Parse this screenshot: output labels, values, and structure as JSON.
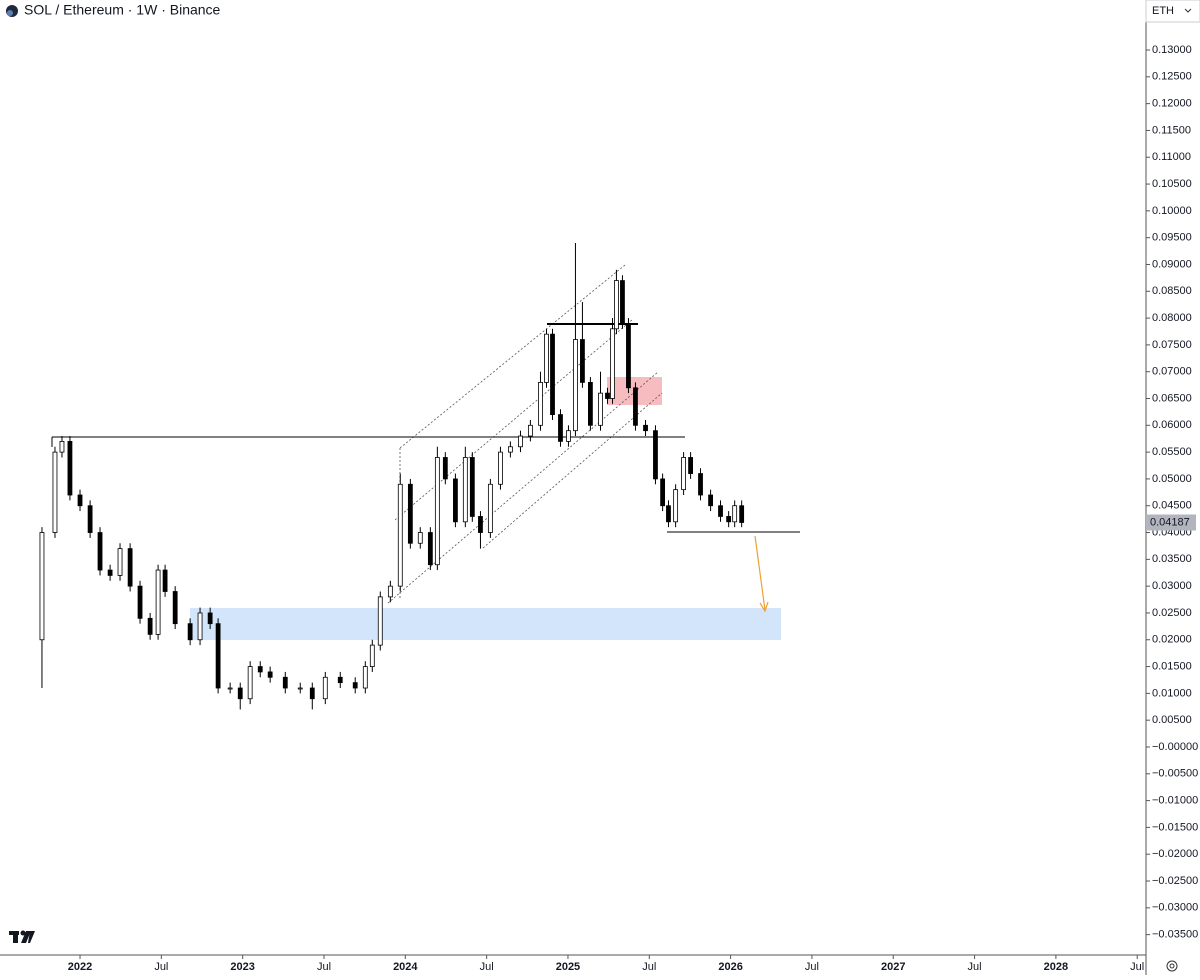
{
  "header": {
    "symbol": "SOL / Ethereum · 1W · Binance",
    "currency": "ETH"
  },
  "chart_data": {
    "type": "candlestick",
    "x": [
      2021.766,
      2021.846,
      2021.889,
      2021.938,
      2022.0,
      2022.062,
      2022.123,
      2022.185,
      2022.246,
      2022.308,
      2022.369,
      2022.431,
      2022.48,
      2022.523,
      2022.585,
      2022.677,
      2022.738,
      2022.8,
      2022.849,
      2022.923,
      2022.985,
      2023.046,
      2023.108,
      2023.169,
      2023.262,
      2023.354,
      2023.428,
      2023.508,
      2023.6,
      2023.692,
      2023.754,
      2023.797,
      2023.846,
      2023.908,
      2023.969,
      2024.031,
      2024.092,
      2024.154,
      2024.197,
      2024.246,
      2024.308,
      2024.369,
      2024.412,
      2024.462,
      2024.523,
      2024.585,
      2024.646,
      2024.708,
      2024.769,
      2024.831,
      2024.868,
      2024.905,
      2024.954,
      2025.003,
      2025.046,
      2025.089,
      2025.138,
      2025.2,
      2025.243,
      2025.274,
      2025.298,
      2025.335,
      2025.372,
      2025.415,
      2025.477,
      2025.538,
      2025.582,
      2025.618,
      2025.662,
      2025.711,
      2025.754,
      2025.815,
      2025.877,
      2025.938,
      2025.988,
      2026.025,
      2026.068
    ],
    "open": [
      0.02,
      0.04,
      0.055,
      0.057,
      0.047,
      0.045,
      0.04,
      0.033,
      0.032,
      0.037,
      0.03,
      0.024,
      0.021,
      0.033,
      0.029,
      0.023,
      0.02,
      0.025,
      0.023,
      0.011,
      0.011,
      0.009,
      0.015,
      0.014,
      0.013,
      0.011,
      0.011,
      0.009,
      0.013,
      0.012,
      0.011,
      0.015,
      0.019,
      0.028,
      0.03,
      0.049,
      0.038,
      0.04,
      0.034,
      0.054,
      0.05,
      0.042,
      0.054,
      0.043,
      0.04,
      0.049,
      0.055,
      0.056,
      0.058,
      0.06,
      0.068,
      0.077,
      0.062,
      0.057,
      0.059,
      0.076,
      0.068,
      0.06,
      0.066,
      0.065,
      0.078,
      0.087,
      0.079,
      0.067,
      0.06,
      0.059,
      0.05,
      0.045,
      0.042,
      0.048,
      0.054,
      0.051,
      0.047,
      0.045,
      0.043,
      0.042,
      0.045
    ],
    "high": [
      0.041,
      0.056,
      0.058,
      0.058,
      0.048,
      0.046,
      0.041,
      0.034,
      0.038,
      0.038,
      0.031,
      0.025,
      0.034,
      0.034,
      0.03,
      0.024,
      0.026,
      0.026,
      0.024,
      0.012,
      0.012,
      0.016,
      0.016,
      0.015,
      0.014,
      0.012,
      0.012,
      0.014,
      0.014,
      0.013,
      0.016,
      0.02,
      0.029,
      0.031,
      0.051,
      0.05,
      0.041,
      0.041,
      0.056,
      0.055,
      0.051,
      0.056,
      0.055,
      0.044,
      0.05,
      0.056,
      0.057,
      0.059,
      0.061,
      0.07,
      0.078,
      0.078,
      0.063,
      0.06,
      0.094,
      0.083,
      0.069,
      0.07,
      0.067,
      0.08,
      0.089,
      0.088,
      0.08,
      0.068,
      0.061,
      0.06,
      0.051,
      0.046,
      0.049,
      0.055,
      0.055,
      0.052,
      0.048,
      0.046,
      0.044,
      0.046,
      0.046
    ],
    "low": [
      0.011,
      0.039,
      0.054,
      0.046,
      0.044,
      0.039,
      0.032,
      0.031,
      0.031,
      0.029,
      0.023,
      0.02,
      0.02,
      0.028,
      0.022,
      0.019,
      0.019,
      0.022,
      0.01,
      0.01,
      0.007,
      0.008,
      0.013,
      0.012,
      0.01,
      0.01,
      0.007,
      0.008,
      0.011,
      0.01,
      0.01,
      0.014,
      0.018,
      0.027,
      0.029,
      0.037,
      0.037,
      0.033,
      0.033,
      0.049,
      0.041,
      0.041,
      0.042,
      0.037,
      0.039,
      0.048,
      0.054,
      0.055,
      0.057,
      0.059,
      0.067,
      0.061,
      0.056,
      0.056,
      0.058,
      0.067,
      0.059,
      0.059,
      0.064,
      0.064,
      0.077,
      0.078,
      0.066,
      0.059,
      0.058,
      0.049,
      0.044,
      0.041,
      0.041,
      0.047,
      0.05,
      0.046,
      0.044,
      0.042,
      0.041,
      0.041,
      0.041
    ],
    "close": [
      0.04,
      0.055,
      0.057,
      0.047,
      0.045,
      0.04,
      0.033,
      0.032,
      0.037,
      0.03,
      0.024,
      0.021,
      0.033,
      0.029,
      0.023,
      0.02,
      0.025,
      0.023,
      0.011,
      0.011,
      0.009,
      0.015,
      0.014,
      0.013,
      0.011,
      0.011,
      0.009,
      0.013,
      0.012,
      0.011,
      0.015,
      0.019,
      0.028,
      0.03,
      0.049,
      0.038,
      0.04,
      0.034,
      0.054,
      0.05,
      0.042,
      0.054,
      0.043,
      0.04,
      0.049,
      0.055,
      0.056,
      0.058,
      0.06,
      0.068,
      0.077,
      0.062,
      0.057,
      0.059,
      0.076,
      0.068,
      0.06,
      0.066,
      0.065,
      0.078,
      0.087,
      0.079,
      0.067,
      0.06,
      0.059,
      0.05,
      0.045,
      0.042,
      0.048,
      0.054,
      0.051,
      0.047,
      0.045,
      0.043,
      0.042,
      0.045,
      0.04187
    ],
    "xlim": [
      2021.508,
      2028.554
    ],
    "ylim": [
      -0.0388,
      0.1356
    ],
    "xticks": [
      2022,
      {
        "value": 2022.5,
        "label": "Jul"
      },
      2023,
      {
        "value": 2023.5,
        "label": "Jul"
      },
      2024,
      {
        "value": 2024.5,
        "label": "Jul"
      },
      2025,
      {
        "value": 2025.5,
        "label": "Jul"
      },
      2026,
      {
        "value": 2026.5,
        "label": "Jul"
      },
      2027,
      {
        "value": 2027.5,
        "label": "Jul"
      },
      2028,
      {
        "value": 2028.5,
        "label": "Jul"
      }
    ],
    "yticks": [
      {
        "value": 0.13,
        "label": "0.13000"
      },
      {
        "value": 0.125,
        "label": "0.12500"
      },
      {
        "value": 0.12,
        "label": "0.12000"
      },
      {
        "value": 0.115,
        "label": "0.11500"
      },
      {
        "value": 0.11,
        "label": "0.11000"
      },
      {
        "value": 0.105,
        "label": "0.10500"
      },
      {
        "value": 0.1,
        "label": "0.10000"
      },
      {
        "value": 0.095,
        "label": "0.09500"
      },
      {
        "value": 0.09,
        "label": "0.09000"
      },
      {
        "value": 0.085,
        "label": "0.08500"
      },
      {
        "value": 0.08,
        "label": "0.08000"
      },
      {
        "value": 0.075,
        "label": "0.07500"
      },
      {
        "value": 0.07,
        "label": "0.07000"
      },
      {
        "value": 0.065,
        "label": "0.06500"
      },
      {
        "value": 0.06,
        "label": "0.06000"
      },
      {
        "value": 0.055,
        "label": "0.05500"
      },
      {
        "value": 0.05,
        "label": "0.05000"
      },
      {
        "value": 0.045,
        "label": "0.04500"
      },
      {
        "value": 0.04,
        "label": "0.04000"
      },
      {
        "value": 0.035,
        "label": "0.03500"
      },
      {
        "value": 0.03,
        "label": "0.03000"
      },
      {
        "value": 0.025,
        "label": "0.02500"
      },
      {
        "value": 0.02,
        "label": "0.02000"
      },
      {
        "value": 0.015,
        "label": "0.01500"
      },
      {
        "value": 0.01,
        "label": "0.01000"
      },
      {
        "value": 0.005,
        "label": "0.00500"
      },
      {
        "value": 0,
        "label": "−0.00000"
      },
      {
        "value": -0.005,
        "label": "−0.00500"
      },
      {
        "value": -0.01,
        "label": "−0.01000"
      },
      {
        "value": -0.015,
        "label": "−0.01500"
      },
      {
        "value": -0.02,
        "label": "−0.02000"
      },
      {
        "value": -0.025,
        "label": "−0.02500"
      },
      {
        "value": -0.03,
        "label": "−0.03000"
      },
      {
        "value": -0.035,
        "label": "−0.03500"
      }
    ],
    "up_color": "#ffffff",
    "down_color": "#000000",
    "outline_color": "#000000"
  }
}
